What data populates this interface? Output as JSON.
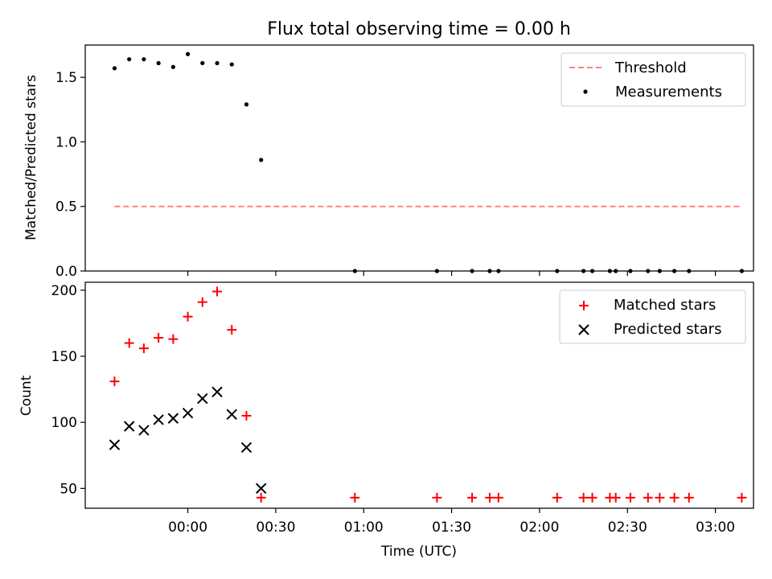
{
  "figure": {
    "title": "Flux total observing time = 0.00 h"
  },
  "chart_data": [
    {
      "type": "scatter",
      "panel": "top",
      "title": "Flux total observing time = 0.00 h",
      "xlabel": "",
      "ylabel": "Matched/Predicted stars",
      "xlim": [
        "23:25",
        "03:13"
      ],
      "ylim": [
        0,
        1.75
      ],
      "yticks": [
        0.0,
        0.5,
        1.0,
        1.5
      ],
      "ytick_labels": [
        "0.0",
        "0.5",
        "1.0",
        "1.5"
      ],
      "legend_position": "top-right",
      "threshold": {
        "name": "Threshold",
        "value": 0.5,
        "x_range": [
          "23:35",
          "03:09"
        ],
        "color": "#ff8080",
        "style": "dashed"
      },
      "series": [
        {
          "name": "Measurements",
          "marker": "dot",
          "color": "#000000",
          "points": [
            {
              "x": "23:35",
              "y": 1.57
            },
            {
              "x": "23:40",
              "y": 1.64
            },
            {
              "x": "23:45",
              "y": 1.64
            },
            {
              "x": "23:50",
              "y": 1.61
            },
            {
              "x": "23:55",
              "y": 1.58
            },
            {
              "x": "00:00",
              "y": 1.68
            },
            {
              "x": "00:05",
              "y": 1.61
            },
            {
              "x": "00:10",
              "y": 1.61
            },
            {
              "x": "00:15",
              "y": 1.6
            },
            {
              "x": "00:20",
              "y": 1.29
            },
            {
              "x": "00:25",
              "y": 0.86
            },
            {
              "x": "00:57",
              "y": 0.0
            },
            {
              "x": "01:25",
              "y": 0.0
            },
            {
              "x": "01:37",
              "y": 0.0
            },
            {
              "x": "01:43",
              "y": 0.0
            },
            {
              "x": "01:46",
              "y": 0.0
            },
            {
              "x": "02:06",
              "y": 0.0
            },
            {
              "x": "02:15",
              "y": 0.0
            },
            {
              "x": "02:18",
              "y": 0.0
            },
            {
              "x": "02:24",
              "y": 0.0
            },
            {
              "x": "02:26",
              "y": 0.0
            },
            {
              "x": "02:31",
              "y": 0.0
            },
            {
              "x": "02:37",
              "y": 0.0
            },
            {
              "x": "02:41",
              "y": 0.0
            },
            {
              "x": "02:46",
              "y": 0.0
            },
            {
              "x": "02:51",
              "y": 0.0
            },
            {
              "x": "03:09",
              "y": 0.0
            }
          ]
        }
      ]
    },
    {
      "type": "scatter",
      "panel": "bottom",
      "xlabel": "Time (UTC)",
      "ylabel": "Count",
      "xlim": [
        "23:25",
        "03:13"
      ],
      "ylim": [
        35,
        206
      ],
      "xticks": [
        "00:00",
        "00:30",
        "01:00",
        "01:30",
        "02:00",
        "02:30",
        "03:00"
      ],
      "yticks": [
        50,
        100,
        150,
        200
      ],
      "ytick_labels": [
        "50",
        "100",
        "150",
        "200"
      ],
      "legend_position": "top-right",
      "series": [
        {
          "name": "Matched stars",
          "marker": "plus",
          "color": "#ff0000",
          "points": [
            {
              "x": "23:35",
              "y": 131
            },
            {
              "x": "23:40",
              "y": 160
            },
            {
              "x": "23:45",
              "y": 156
            },
            {
              "x": "23:50",
              "y": 164
            },
            {
              "x": "23:55",
              "y": 163
            },
            {
              "x": "00:00",
              "y": 180
            },
            {
              "x": "00:05",
              "y": 191
            },
            {
              "x": "00:10",
              "y": 199
            },
            {
              "x": "00:15",
              "y": 170
            },
            {
              "x": "00:20",
              "y": 105
            },
            {
              "x": "00:25",
              "y": 43
            },
            {
              "x": "00:57",
              "y": 43
            },
            {
              "x": "01:25",
              "y": 43
            },
            {
              "x": "01:37",
              "y": 43
            },
            {
              "x": "01:43",
              "y": 43
            },
            {
              "x": "01:46",
              "y": 43
            },
            {
              "x": "02:06",
              "y": 43
            },
            {
              "x": "02:15",
              "y": 43
            },
            {
              "x": "02:18",
              "y": 43
            },
            {
              "x": "02:24",
              "y": 43
            },
            {
              "x": "02:26",
              "y": 43
            },
            {
              "x": "02:31",
              "y": 43
            },
            {
              "x": "02:37",
              "y": 43
            },
            {
              "x": "02:41",
              "y": 43
            },
            {
              "x": "02:46",
              "y": 43
            },
            {
              "x": "02:51",
              "y": 43
            },
            {
              "x": "03:09",
              "y": 43
            }
          ]
        },
        {
          "name": "Predicted stars",
          "marker": "x",
          "color": "#000000",
          "points": [
            {
              "x": "23:35",
              "y": 83
            },
            {
              "x": "23:40",
              "y": 97
            },
            {
              "x": "23:45",
              "y": 94
            },
            {
              "x": "23:50",
              "y": 102
            },
            {
              "x": "23:55",
              "y": 103
            },
            {
              "x": "00:00",
              "y": 107
            },
            {
              "x": "00:05",
              "y": 118
            },
            {
              "x": "00:10",
              "y": 123
            },
            {
              "x": "00:15",
              "y": 106
            },
            {
              "x": "00:20",
              "y": 81
            },
            {
              "x": "00:25",
              "y": 50
            }
          ]
        }
      ]
    }
  ]
}
